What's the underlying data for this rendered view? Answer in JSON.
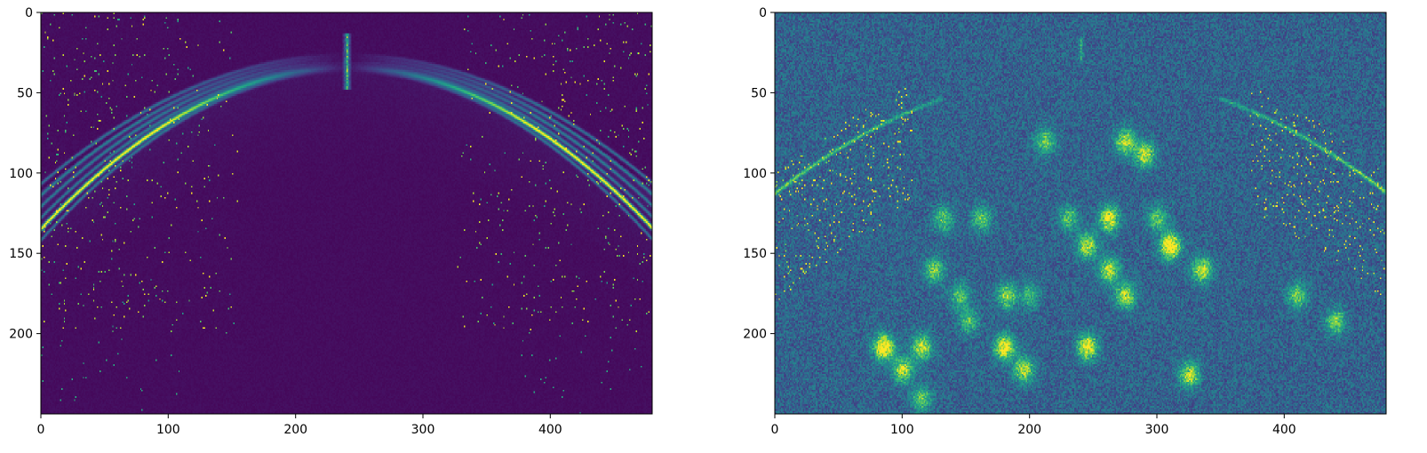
{
  "chart_data": [
    {
      "type": "heatmap",
      "title": "",
      "xlabel": "",
      "ylabel": "",
      "colormap": "viridis",
      "colors": {
        "low": "#440154",
        "mid": "#21918c",
        "high": "#fde725"
      },
      "image_width": 480,
      "image_height": 250,
      "xlim": [
        0,
        480
      ],
      "ylim": [
        250,
        0
      ],
      "x_ticks": [
        0,
        100,
        200,
        300,
        400
      ],
      "y_ticks": [
        0,
        50,
        100,
        150,
        200
      ],
      "x_tick_labels": [
        "0",
        "100",
        "200",
        "300",
        "400"
      ],
      "y_tick_labels": [
        "0",
        "50",
        "100",
        "150",
        "200"
      ],
      "features": {
        "background_level": 0.02,
        "arc_apex": [
          240,
          30
        ],
        "arc_endpoints_y": 110,
        "central_spike": [
          240,
          18,
          48
        ],
        "scattered_speckle": true,
        "hotspots": []
      }
    },
    {
      "type": "heatmap",
      "title": "",
      "xlabel": "",
      "ylabel": "",
      "colormap": "viridis",
      "colors": {
        "low": "#440154",
        "mid": "#21918c",
        "high": "#fde725"
      },
      "image_width": 480,
      "image_height": 250,
      "xlim": [
        0,
        480
      ],
      "ylim": [
        250,
        0
      ],
      "x_ticks": [
        0,
        100,
        200,
        300,
        400
      ],
      "y_ticks": [
        0,
        50,
        100,
        150,
        200
      ],
      "x_tick_labels": [
        "0",
        "100",
        "200",
        "300",
        "400"
      ],
      "y_tick_labels": [
        "0",
        "50",
        "100",
        "150",
        "200"
      ],
      "features": {
        "background_level": 0.18,
        "arc_apex": [
          240,
          30
        ],
        "arc_endpoints_y": 110,
        "central_spike": [
          240,
          20,
          30
        ],
        "scattered_speckle": true,
        "hotspots": [
          [
            85,
            208,
            1.0
          ],
          [
            115,
            208,
            0.7
          ],
          [
            100,
            222,
            0.7
          ],
          [
            180,
            208,
            0.85
          ],
          [
            195,
            222,
            0.7
          ],
          [
            245,
            208,
            0.85
          ],
          [
            310,
            145,
            1.0
          ],
          [
            335,
            160,
            0.7
          ],
          [
            262,
            128,
            0.85
          ],
          [
            245,
            145,
            0.7
          ],
          [
            262,
            160,
            0.7
          ],
          [
            275,
            80,
            0.7
          ],
          [
            290,
            88,
            0.7
          ],
          [
            275,
            176,
            0.7
          ],
          [
            182,
            176,
            0.6
          ],
          [
            125,
            160,
            0.55
          ],
          [
            145,
            176,
            0.5
          ],
          [
            132,
            128,
            0.5
          ],
          [
            162,
            128,
            0.5
          ],
          [
            212,
            80,
            0.55
          ],
          [
            325,
            225,
            0.7
          ],
          [
            410,
            176,
            0.55
          ],
          [
            440,
            192,
            0.55
          ],
          [
            115,
            240,
            0.5
          ],
          [
            152,
            192,
            0.45
          ],
          [
            200,
            176,
            0.4
          ],
          [
            230,
            128,
            0.5
          ],
          [
            300,
            128,
            0.5
          ]
        ]
      }
    }
  ]
}
